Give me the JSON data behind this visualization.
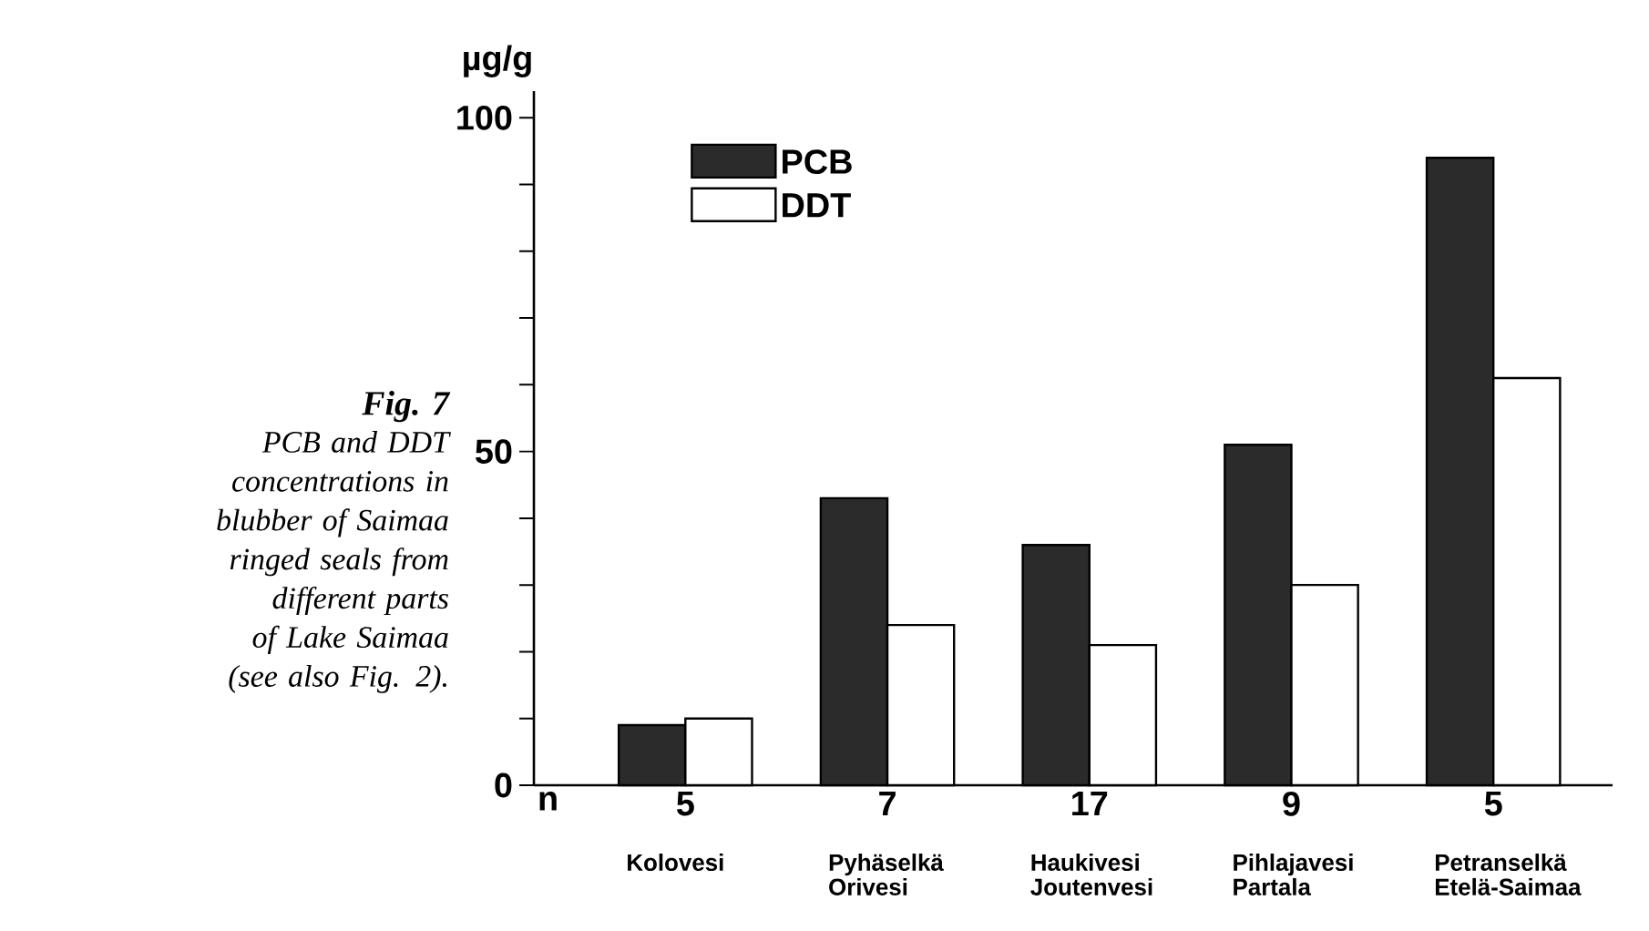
{
  "chart_data": {
    "type": "bar",
    "title": "Fig. 7",
    "subtitle": "PCB and DDT concentrations in blubber of Saimaa ringed seals from different parts of Lake Saimaa (see also Fig. 2).",
    "ylabel": "µg/g",
    "categories": [
      "Kolovesi",
      "Pyhäselkä Orivesi",
      "Haukivesi Joutenvesi",
      "Pihlajavesi Partala",
      "Petranselkä Etelä-Saimaa"
    ],
    "series": [
      {
        "name": "PCB",
        "color": "#2b2b2b",
        "values": [
          9,
          43,
          36,
          51,
          94
        ]
      },
      {
        "name": "DDT",
        "color": "#ffffff",
        "values": [
          10,
          24,
          21,
          30,
          61
        ]
      }
    ],
    "ylim": [
      0,
      104
    ],
    "yticks": [
      0,
      {
        "value": 10,
        "label": null
      },
      {
        "value": 20,
        "label": null
      },
      {
        "value": 30,
        "label": null
      },
      {
        "value": 40,
        "label": null
      },
      50,
      {
        "value": 60,
        "label": null
      },
      {
        "value": 70,
        "label": null
      },
      {
        "value": 80,
        "label": null
      },
      {
        "value": 90,
        "label": null
      },
      100
    ],
    "annotations": [
      "n",
      "5",
      "7",
      "17",
      "9",
      "5"
    ],
    "legend": "top left"
  }
}
